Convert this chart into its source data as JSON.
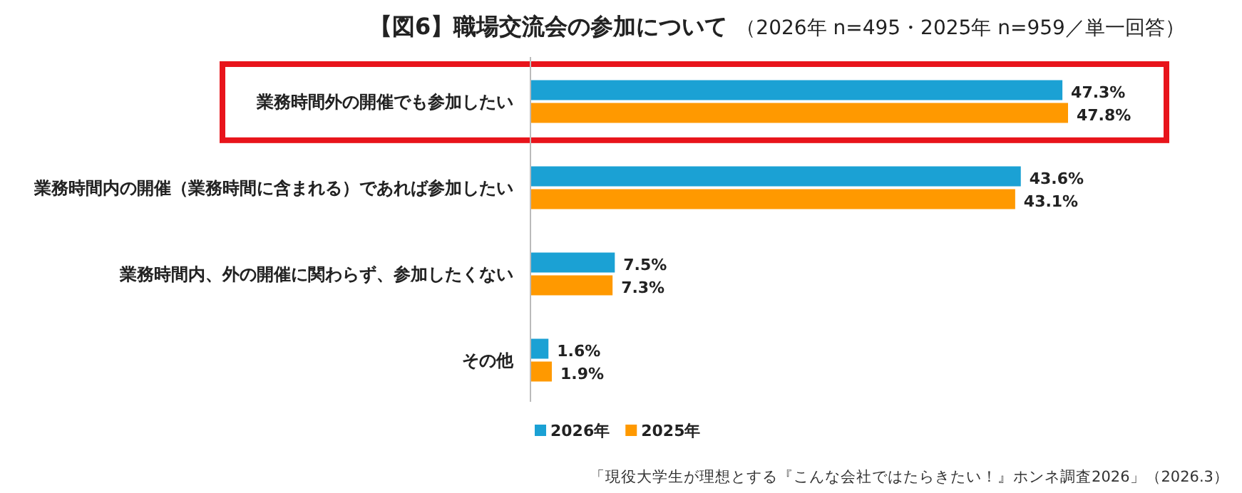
{
  "chart_data": {
    "type": "bar",
    "orientation": "horizontal",
    "title": "【図6】職場交流会の参加について",
    "subtitle": "（2026年 n=495・2025年 n=959／単一回答）",
    "categories": [
      "業務時間外の開催でも参加したい",
      "業務時間内の開催（業務時間に含まれる）であれば参加したい",
      "業務時間内、外の開催に関わらず、参加したくない",
      "その他"
    ],
    "series": [
      {
        "name": "2026年",
        "color": "#1ba1d4",
        "values": [
          47.3,
          43.6,
          7.5,
          1.6
        ],
        "value_labels": [
          "47.3%",
          "43.6%",
          "7.5%",
          "1.6%"
        ]
      },
      {
        "name": "2025年",
        "color": "#ff9900",
        "values": [
          47.8,
          43.1,
          7.3,
          1.9
        ],
        "value_labels": [
          "47.8%",
          "43.1%",
          "7.3%",
          "1.9%"
        ]
      }
    ],
    "legend": "bottom",
    "annotations": [
      "「現役大学生が理想とする『こんな会社ではたらきたい！』ホンネ調査2026」（2026.3）"
    ]
  }
}
